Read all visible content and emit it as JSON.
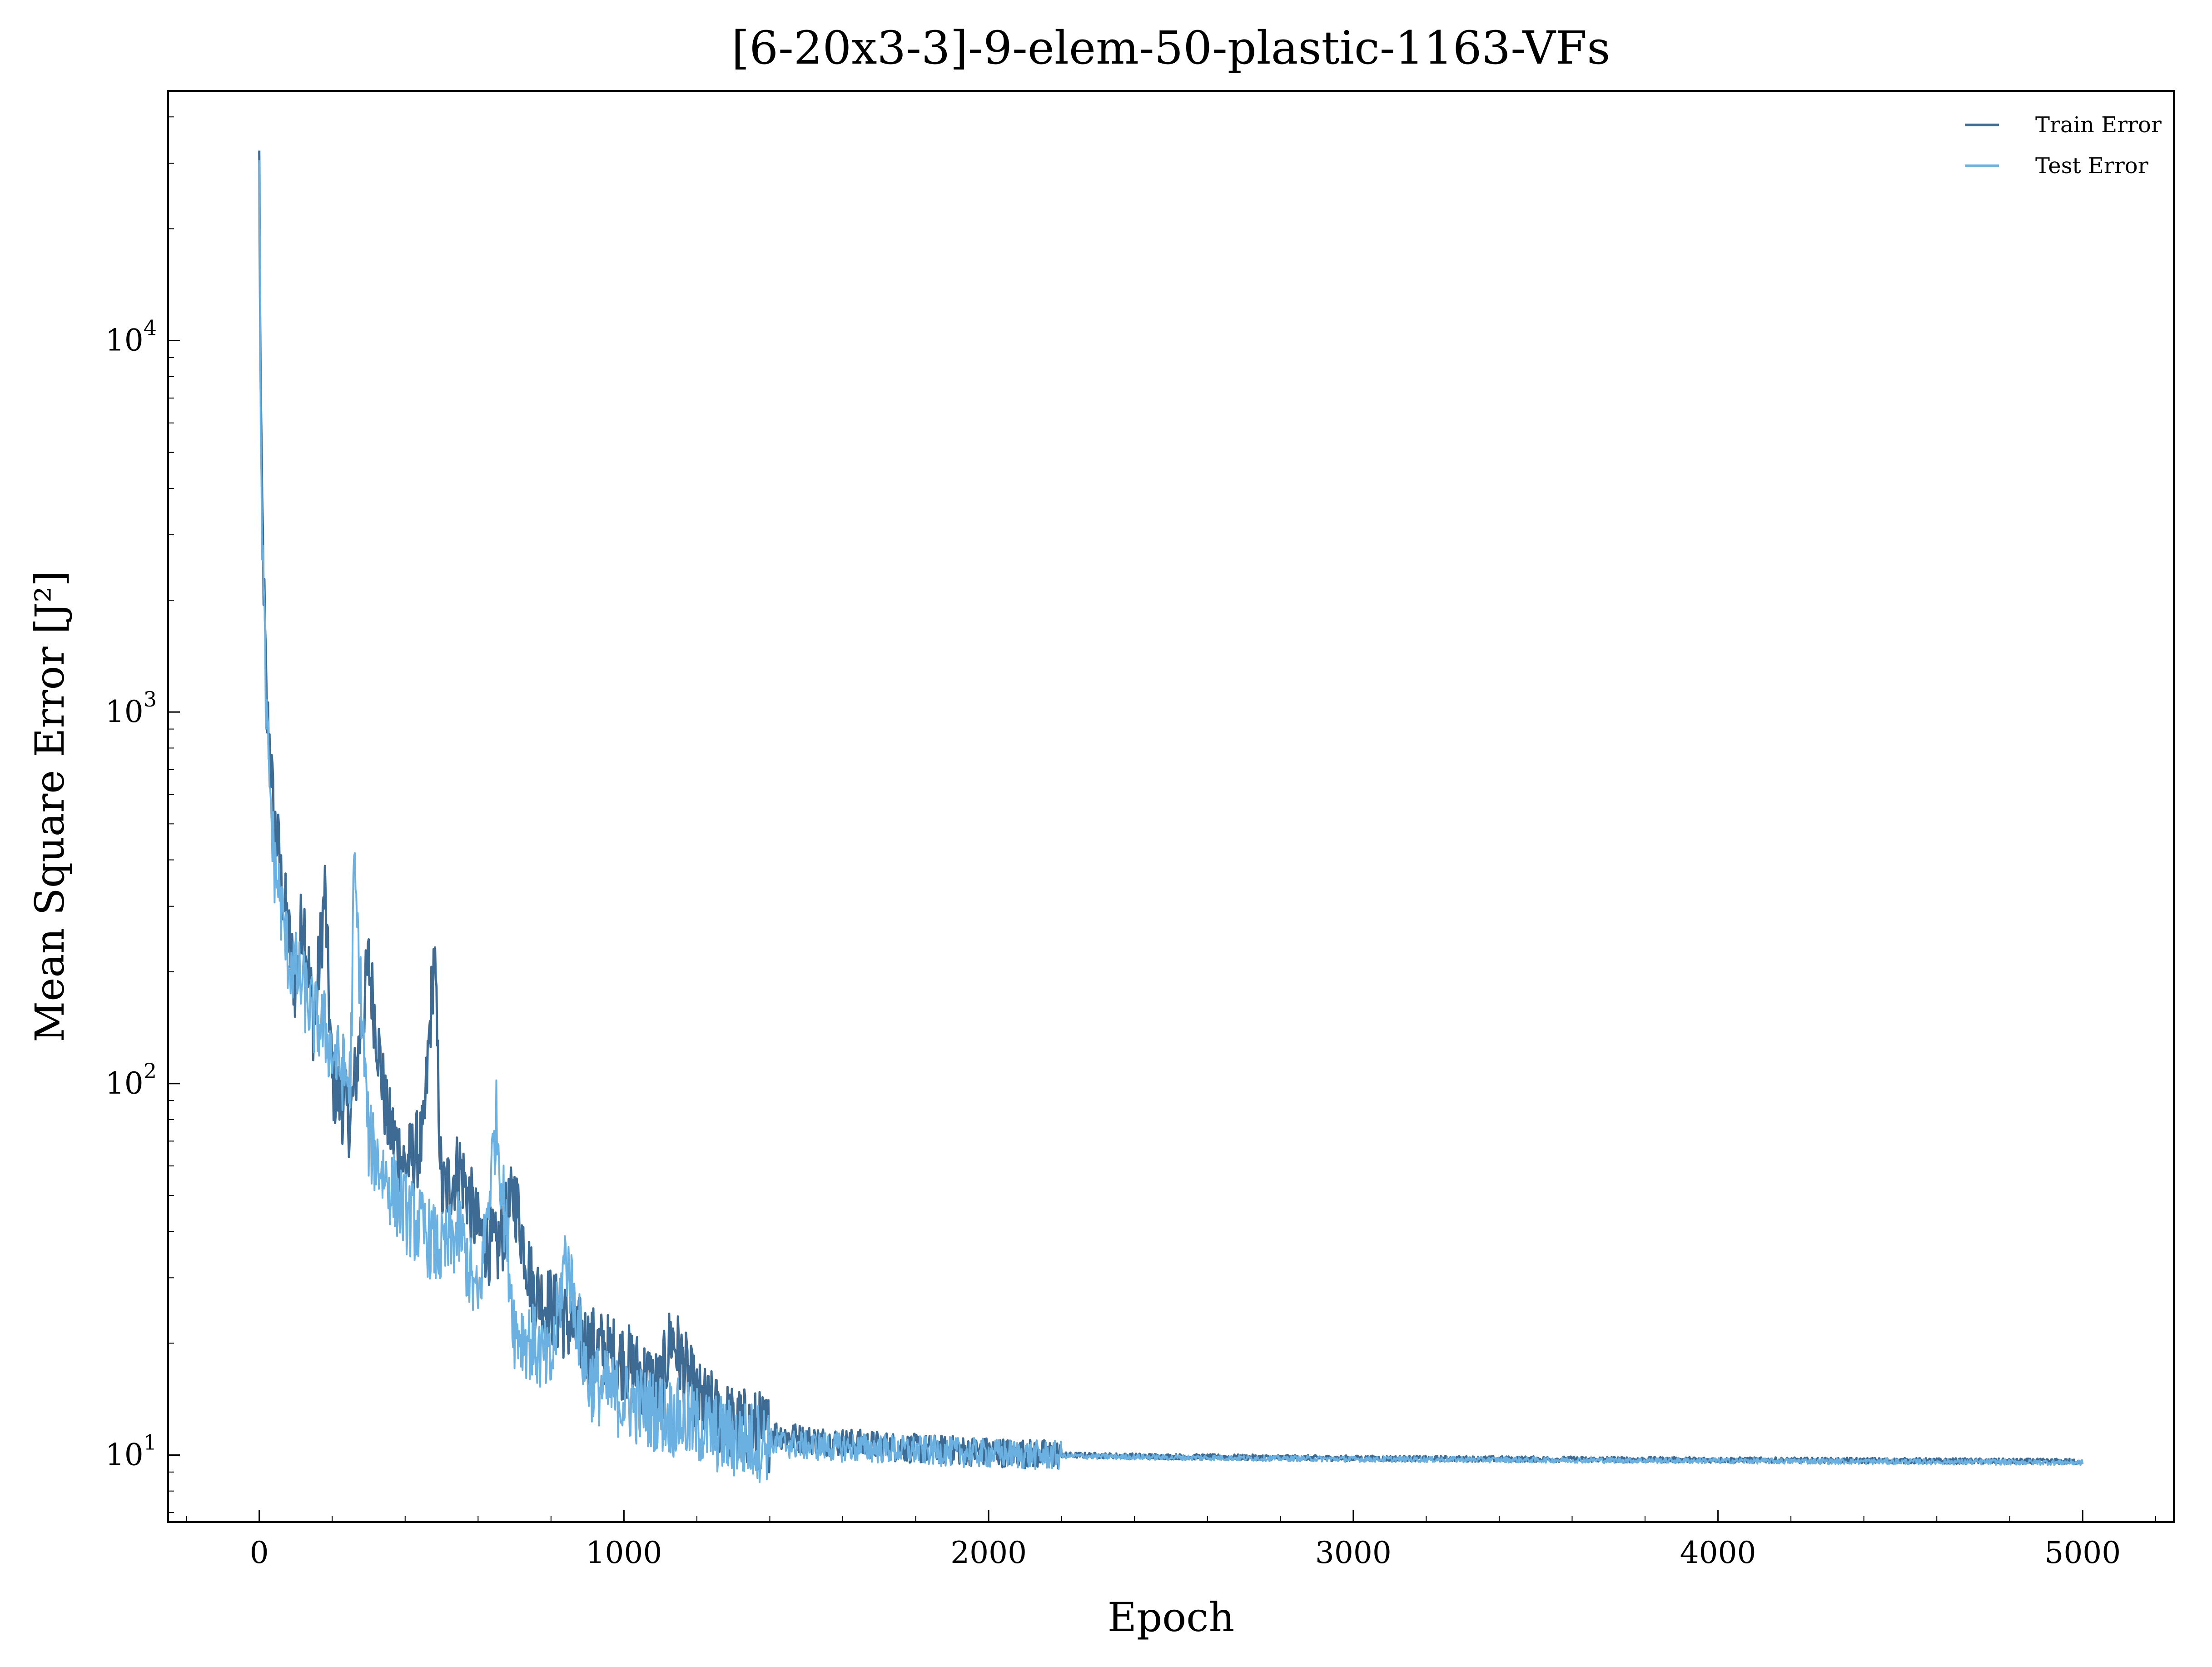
{
  "chart_data": {
    "type": "line",
    "title": "[6-20x3-3]-9-elem-50-plastic-1163-VFs",
    "xlabel": "Epoch",
    "ylabel": "Mean Square Error [J²]",
    "yscale": "log",
    "xlim": [
      -250,
      5250
    ],
    "ylim": [
      6.6,
      47000
    ],
    "x_ticks": [
      0,
      1000,
      2000,
      3000,
      4000,
      5000
    ],
    "y_ticks": [
      {
        "value": 10,
        "base": "10",
        "exp": "1"
      },
      {
        "value": 100,
        "base": "10",
        "exp": "2"
      },
      {
        "value": 1000,
        "base": "10",
        "exp": "3"
      },
      {
        "value": 10000,
        "base": "10",
        "exp": "4"
      }
    ],
    "grid": false,
    "legend_position": "top-right",
    "series": [
      {
        "name": "Train Error",
        "color": "#3d6b94",
        "x": [
          0,
          5,
          10,
          15,
          20,
          30,
          40,
          50,
          60,
          70,
          80,
          100,
          120,
          150,
          180,
          200,
          250,
          300,
          350,
          400,
          450,
          480,
          500,
          550,
          600,
          650,
          700,
          750,
          800,
          900,
          1000,
          1100,
          1130,
          1200,
          1300,
          1400,
          1500,
          1600,
          1700,
          1800,
          2000,
          2200,
          2500,
          3000,
          3500,
          4000,
          4500,
          5000
        ],
        "y": [
          30000,
          4800,
          2800,
          1700,
          1000,
          800,
          500,
          450,
          350,
          300,
          250,
          180,
          300,
          140,
          330,
          100,
          80,
          210,
          80,
          60,
          70,
          230,
          50,
          60,
          40,
          35,
          50,
          28,
          25,
          20,
          18,
          15,
          21,
          14,
          12,
          11.5,
          11,
          10.8,
          10.6,
          10.4,
          10.2,
          10.0,
          9.9,
          9.8,
          9.75,
          9.7,
          9.65,
          9.6
        ]
      },
      {
        "name": "Test Error",
        "color": "#6ab0e0",
        "x": [
          0,
          5,
          10,
          15,
          20,
          30,
          40,
          50,
          60,
          70,
          80,
          100,
          120,
          150,
          180,
          200,
          250,
          260,
          300,
          350,
          400,
          450,
          500,
          550,
          600,
          650,
          700,
          750,
          800,
          840,
          900,
          1000,
          1100,
          1200,
          1300,
          1400,
          1500,
          1600,
          1700,
          1800,
          2000,
          2200,
          2500,
          3000,
          3500,
          4000,
          4500,
          5000
        ],
        "y": [
          28000,
          4500,
          2500,
          1500,
          900,
          600,
          400,
          350,
          300,
          250,
          220,
          200,
          180,
          150,
          140,
          120,
          100,
          380,
          70,
          55,
          45,
          40,
          35,
          40,
          25,
          80,
          22,
          20,
          17,
          35,
          16,
          14,
          13,
          12,
          11,
          10.8,
          10.6,
          10.5,
          10.4,
          10.3,
          10.1,
          9.95,
          9.85,
          9.75,
          9.7,
          9.65,
          9.6,
          9.55
        ]
      }
    ]
  }
}
